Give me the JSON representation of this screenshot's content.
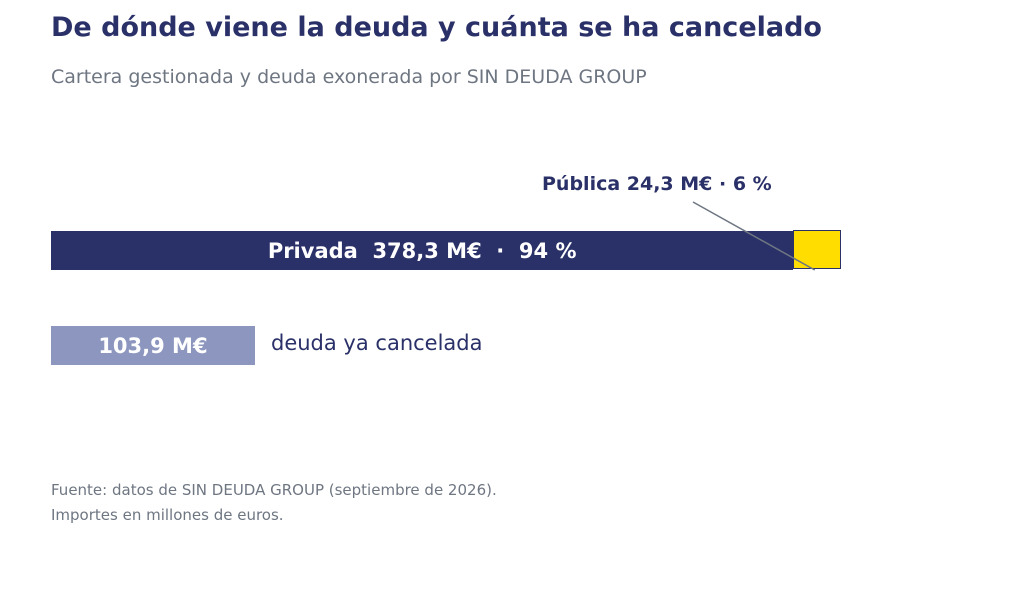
{
  "title": "De dónde viene la deuda y cuánta se ha cancelado",
  "subtitle": "Cartera gestionada y deuda exonerada por SIN DEUDA GROUP",
  "chart_data": {
    "type": "bar",
    "orientation": "horizontal",
    "title": "De dónde viene la deuda y cuánta se ha cancelado",
    "subtitle": "Cartera gestionada y deuda exonerada por SIN DEUDA GROUP",
    "unit": "M€",
    "bars": [
      {
        "name": "cartera",
        "stacked": true,
        "segments": [
          {
            "category": "Privada",
            "value": 378.3,
            "percent": 94,
            "color": "#2a3068"
          },
          {
            "category": "Pública",
            "value": 24.3,
            "percent": 6,
            "color": "#ffdd00"
          }
        ]
      },
      {
        "name": "cancelada",
        "segments": [
          {
            "category": "deuda ya cancelada",
            "value": 103.9,
            "color": "#8c96bf"
          }
        ]
      }
    ]
  },
  "labels": {
    "private_bar": "Privada  378,3 M€  ·  94 %",
    "public_callout": "Pública 24,3 M€ · 6 %",
    "cancelled_value": "103,9 M€",
    "cancelled_caption": "deuda ya cancelada"
  },
  "source": {
    "line1": "Fuente: datos de SIN DEUDA GROUP (septiembre de 2026).",
    "line2": "Importes en millones de euros."
  },
  "colors": {
    "navy": "#2a3068",
    "yellow": "#ffdd00",
    "lavender": "#8c96bf",
    "gray_text": "#6e7682",
    "leader_line": "#6e7682"
  }
}
